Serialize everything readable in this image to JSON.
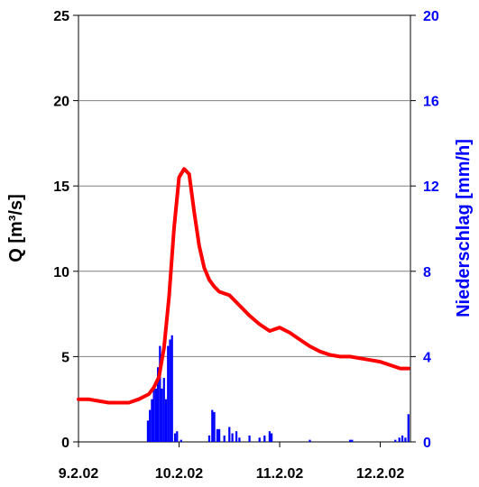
{
  "chart_data": {
    "type": "line",
    "title": "",
    "x_axis": {
      "ticks": [
        {
          "label": "9.2.02",
          "value": 0
        },
        {
          "label": "10.2.02",
          "value": 1
        },
        {
          "label": "11.2.02",
          "value": 2
        },
        {
          "label": "12.2.02",
          "value": 3
        }
      ],
      "range": [
        0,
        3.3
      ]
    },
    "y_left": {
      "label": "Q [m³/s]",
      "range": [
        0,
        25
      ],
      "ticks": [
        "0",
        "5",
        "10",
        "15",
        "20",
        "25"
      ]
    },
    "y_right": {
      "label": "Niederschlag [mm/h]",
      "range": [
        0,
        20
      ],
      "ticks": [
        "0",
        "4",
        "8",
        "12",
        "16",
        "20"
      ]
    },
    "grid": true,
    "series": [
      {
        "name": "Q",
        "axis": "left",
        "color": "#ff0000",
        "kind": "line",
        "points": [
          [
            0.0,
            2.5
          ],
          [
            0.1,
            2.5
          ],
          [
            0.2,
            2.4
          ],
          [
            0.3,
            2.3
          ],
          [
            0.4,
            2.3
          ],
          [
            0.5,
            2.3
          ],
          [
            0.6,
            2.5
          ],
          [
            0.7,
            2.8
          ],
          [
            0.75,
            3.2
          ],
          [
            0.8,
            3.8
          ],
          [
            0.85,
            5.5
          ],
          [
            0.9,
            8.5
          ],
          [
            0.95,
            12.5
          ],
          [
            1.0,
            15.5
          ],
          [
            1.05,
            16.0
          ],
          [
            1.1,
            15.7
          ],
          [
            1.15,
            13.5
          ],
          [
            1.2,
            11.5
          ],
          [
            1.25,
            10.2
          ],
          [
            1.3,
            9.5
          ],
          [
            1.35,
            9.1
          ],
          [
            1.4,
            8.8
          ],
          [
            1.5,
            8.6
          ],
          [
            1.6,
            8.0
          ],
          [
            1.7,
            7.4
          ],
          [
            1.8,
            6.9
          ],
          [
            1.9,
            6.5
          ],
          [
            2.0,
            6.7
          ],
          [
            2.1,
            6.4
          ],
          [
            2.2,
            6.0
          ],
          [
            2.3,
            5.6
          ],
          [
            2.4,
            5.3
          ],
          [
            2.5,
            5.1
          ],
          [
            2.6,
            5.0
          ],
          [
            2.7,
            5.0
          ],
          [
            2.8,
            4.9
          ],
          [
            2.9,
            4.8
          ],
          [
            3.0,
            4.7
          ],
          [
            3.1,
            4.5
          ],
          [
            3.2,
            4.3
          ],
          [
            3.28,
            4.3
          ]
        ]
      },
      {
        "name": "Niederschlag",
        "axis": "right",
        "color": "#0000ff",
        "kind": "bar",
        "bar_width": 0.02,
        "points": [
          [
            0.69,
            1.0
          ],
          [
            0.71,
            1.5
          ],
          [
            0.73,
            2.0
          ],
          [
            0.75,
            2.5
          ],
          [
            0.77,
            2.5
          ],
          [
            0.79,
            3.5
          ],
          [
            0.81,
            4.5
          ],
          [
            0.83,
            2.5
          ],
          [
            0.85,
            3.0
          ],
          [
            0.87,
            2.0
          ],
          [
            0.89,
            4.5
          ],
          [
            0.91,
            4.8
          ],
          [
            0.93,
            5.0
          ],
          [
            0.96,
            0.4
          ],
          [
            0.98,
            0.5
          ],
          [
            1.02,
            0.1
          ],
          [
            1.3,
            0.3
          ],
          [
            1.33,
            1.5
          ],
          [
            1.35,
            1.4
          ],
          [
            1.38,
            0.6
          ],
          [
            1.4,
            0.6
          ],
          [
            1.45,
            0.3
          ],
          [
            1.5,
            0.7
          ],
          [
            1.53,
            0.4
          ],
          [
            1.57,
            0.5
          ],
          [
            1.6,
            0.2
          ],
          [
            1.7,
            0.3
          ],
          [
            1.8,
            0.2
          ],
          [
            1.85,
            0.3
          ],
          [
            1.9,
            0.5
          ],
          [
            1.92,
            0.4
          ],
          [
            2.3,
            0.1
          ],
          [
            2.7,
            0.1
          ],
          [
            2.72,
            0.1
          ],
          [
            3.15,
            0.1
          ],
          [
            3.19,
            0.2
          ],
          [
            3.22,
            0.3
          ],
          [
            3.25,
            0.2
          ],
          [
            3.28,
            1.3
          ]
        ]
      }
    ]
  }
}
